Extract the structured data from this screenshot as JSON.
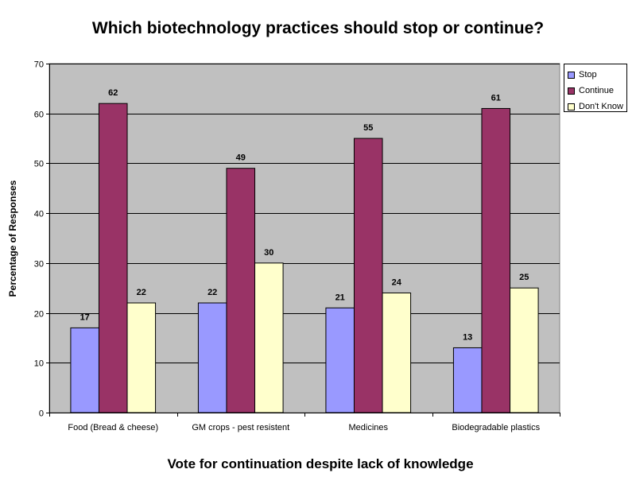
{
  "chart_data": {
    "type": "bar",
    "title": "Which biotechnology practices should stop or continue?",
    "xlabel": "Vote for continuation despite lack of knowledge",
    "ylabel": "Percentage of Responses",
    "categories": [
      "Food (Bread & cheese)",
      "GM crops - pest resistent",
      "Medicines",
      "Biodegradable plastics"
    ],
    "series": [
      {
        "name": "Stop",
        "values": [
          17,
          22,
          21,
          13
        ],
        "color": "#9999ff"
      },
      {
        "name": "Continue",
        "values": [
          62,
          49,
          55,
          61
        ],
        "color": "#993366"
      },
      {
        "name": "Don't Know",
        "values": [
          22,
          30,
          24,
          25
        ],
        "color": "#ffffcc"
      }
    ],
    "ylim": [
      0,
      70
    ],
    "yticks": [
      0,
      10,
      20,
      30,
      40,
      50,
      60,
      70
    ],
    "plot_background": "#c0c0c0",
    "grid": true,
    "legend_position": "right",
    "data_labels": true
  }
}
